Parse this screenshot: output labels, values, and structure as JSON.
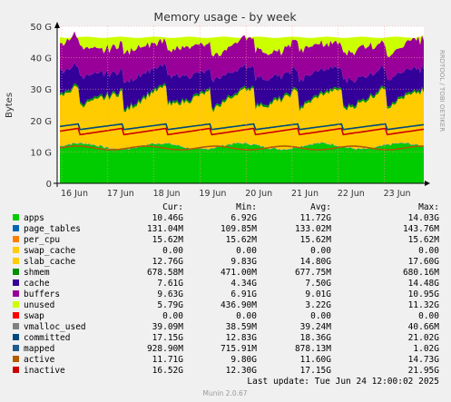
{
  "chart_data": {
    "type": "area",
    "title": "Memory usage - by week",
    "ylabel": "Bytes",
    "watermark": "RRDTOOL / TOBI OETIKER",
    "ylim": [
      0,
      50
    ],
    "y_unit": "G",
    "yticks": [
      "0",
      "10 G",
      "20 G",
      "30 G",
      "40 G",
      "50 G"
    ],
    "ytick_values": [
      0,
      10,
      20,
      30,
      40,
      50
    ],
    "categories": [
      "16 Jun",
      "17 Jun",
      "18 Jun",
      "19 Jun",
      "20 Jun",
      "21 Jun",
      "22 Jun",
      "23 Jun"
    ],
    "grid": true,
    "legend_placement": "bottom",
    "stack_bands_G": [
      {
        "name": "apps",
        "color": "#00cc00",
        "approx_level_G": 11.7
      },
      {
        "name": "page_tables",
        "color": "#0066b3",
        "approx_level_G": 0.13
      },
      {
        "name": "per_cpu",
        "color": "#ff8000",
        "approx_level_G": 0.02
      },
      {
        "name": "swap_cache",
        "color": "#ffcc00",
        "approx_level_G": 0.0
      },
      {
        "name": "slab_cache",
        "color": "#ffcc00",
        "approx_level_G": 14.8
      },
      {
        "name": "shmem",
        "color": "#008f00",
        "approx_level_G": 0.68
      },
      {
        "name": "cache",
        "color": "#330099",
        "approx_level_G": 7.5
      },
      {
        "name": "buffers",
        "color": "#990099",
        "approx_level_G": 9.0
      },
      {
        "name": "unused",
        "color": "#ccff00",
        "approx_level_G": 3.2
      }
    ],
    "line_series": [
      {
        "name": "committed",
        "color": "#00487d",
        "approx_level_G": 18.4
      },
      {
        "name": "active",
        "color": "#b35a00",
        "approx_level_G": 11.6
      },
      {
        "name": "inactive",
        "color": "#cc0000",
        "approx_level_G": 17.2
      }
    ],
    "columns": [
      "Cur:",
      "Min:",
      "Avg:",
      "Max:"
    ],
    "legend": [
      {
        "name": "apps",
        "color": "#00cc00",
        "cur": "10.46G",
        "min": "6.92G",
        "avg": "11.72G",
        "max": "14.03G"
      },
      {
        "name": "page_tables",
        "color": "#0066b3",
        "cur": "131.04M",
        "min": "109.85M",
        "avg": "133.02M",
        "max": "143.76M"
      },
      {
        "name": "per_cpu",
        "color": "#ff8000",
        "cur": "15.62M",
        "min": "15.62M",
        "avg": "15.62M",
        "max": "15.62M"
      },
      {
        "name": "swap_cache",
        "color": "#ffcc00",
        "cur": "0.00",
        "min": "0.00",
        "avg": "0.00",
        "max": "0.00"
      },
      {
        "name": "slab_cache",
        "color": "#ffcc00",
        "cur": "12.76G",
        "min": "9.83G",
        "avg": "14.80G",
        "max": "17.60G"
      },
      {
        "name": "shmem",
        "color": "#008f00",
        "cur": "678.58M",
        "min": "471.00M",
        "avg": "677.75M",
        "max": "680.16M"
      },
      {
        "name": "cache",
        "color": "#330099",
        "cur": "7.61G",
        "min": "4.34G",
        "avg": "7.50G",
        "max": "14.48G"
      },
      {
        "name": "buffers",
        "color": "#990099",
        "cur": "9.63G",
        "min": "6.91G",
        "avg": "9.01G",
        "max": "10.95G"
      },
      {
        "name": "unused",
        "color": "#ccff00",
        "cur": "5.79G",
        "min": "436.90M",
        "avg": "3.22G",
        "max": "11.32G"
      },
      {
        "name": "swap",
        "color": "#ff0000",
        "cur": "0.00",
        "min": "0.00",
        "avg": "0.00",
        "max": "0.00"
      },
      {
        "name": "vmalloc_used",
        "color": "#808080",
        "cur": "39.09M",
        "min": "38.59M",
        "avg": "39.24M",
        "max": "40.66M"
      },
      {
        "name": "committed",
        "color": "#00487d",
        "cur": "17.15G",
        "min": "12.83G",
        "avg": "18.36G",
        "max": "21.02G"
      },
      {
        "name": "mapped",
        "color": "#1f5b8c",
        "cur": "928.90M",
        "min": "715.91M",
        "avg": "878.13M",
        "max": "1.02G"
      },
      {
        "name": "active",
        "color": "#b35a00",
        "cur": "11.71G",
        "min": "9.80G",
        "avg": "11.60G",
        "max": "14.73G"
      },
      {
        "name": "inactive",
        "color": "#cc0000",
        "cur": "16.52G",
        "min": "12.30G",
        "avg": "17.15G",
        "max": "21.95G"
      }
    ],
    "last_update": "Last update: Tue Jun 24 12:00:02 2025",
    "footer": "Munin 2.0.67"
  }
}
